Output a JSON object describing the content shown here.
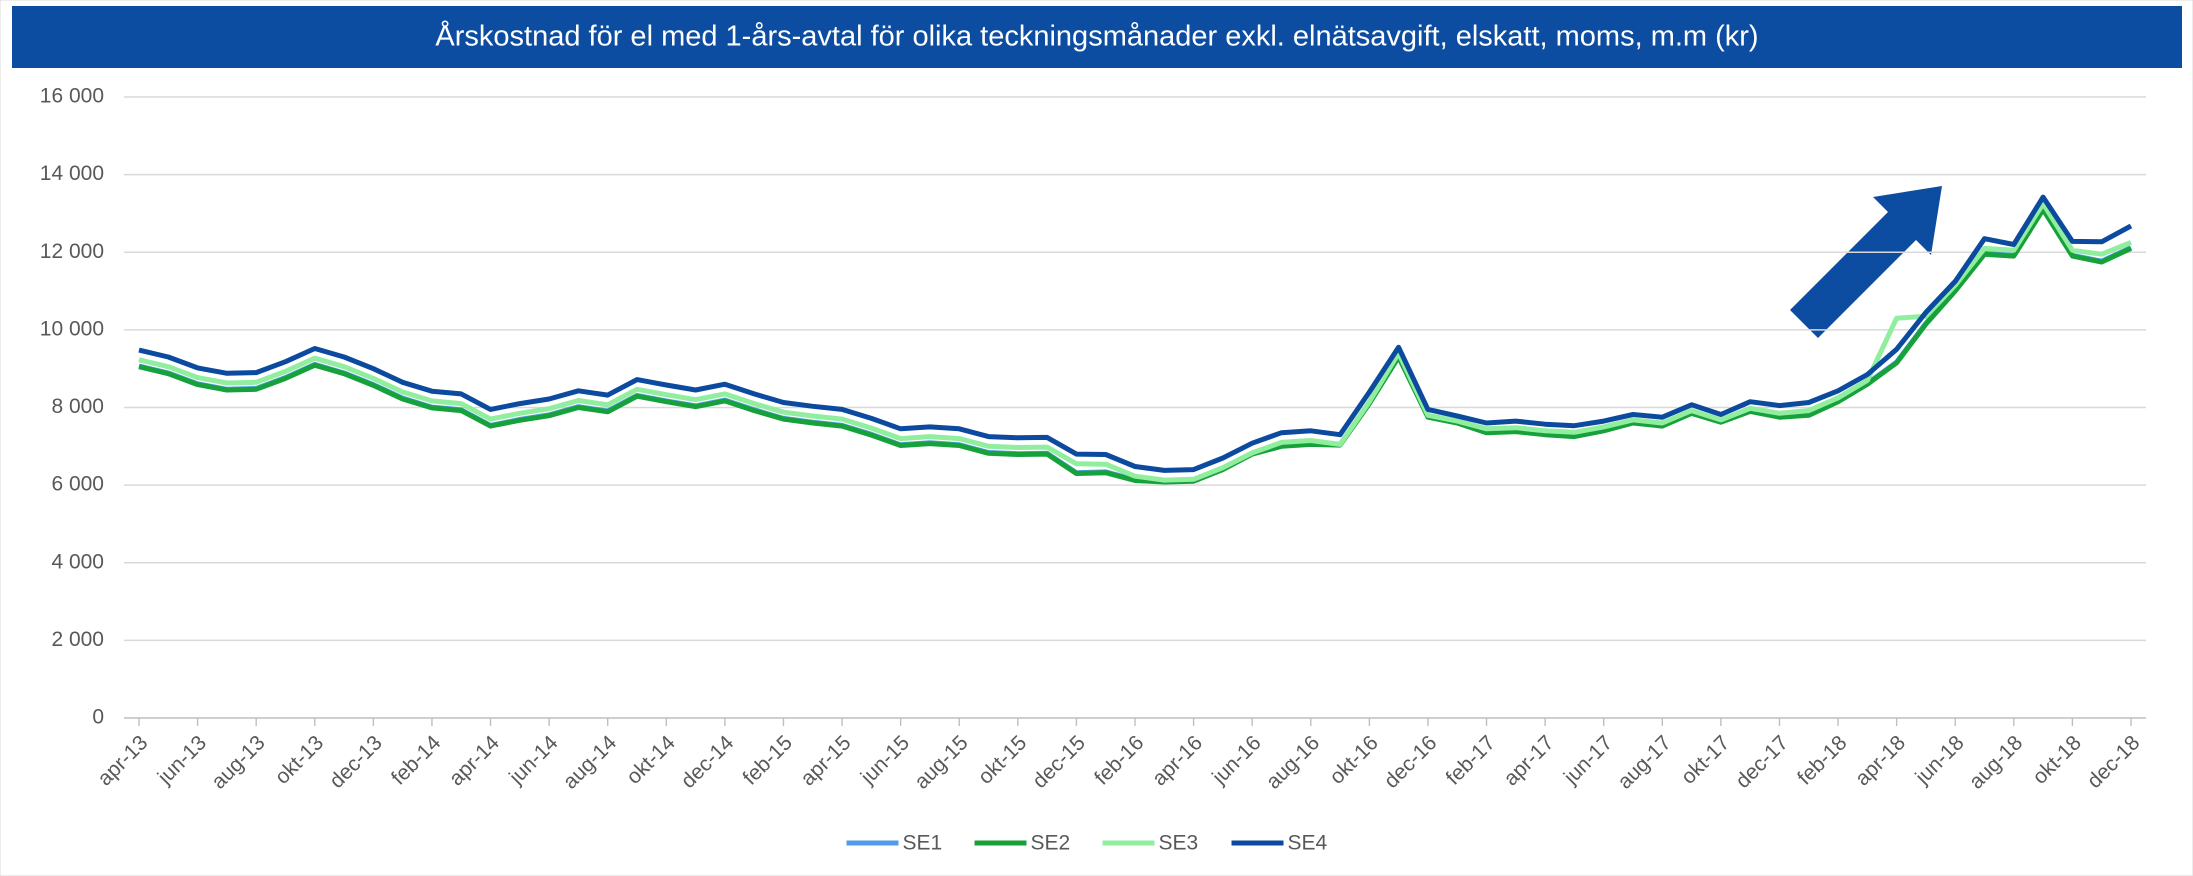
{
  "chart_data": {
    "type": "line",
    "title": "Årskostnad för el med 1-års-avtal för olika teckningsmånader exkl. elnätsavgift, elskatt, moms, m.m (kr)",
    "categories": [
      "apr-13",
      null,
      "jun-13",
      null,
      "aug-13",
      null,
      "okt-13",
      null,
      "dec-13",
      null,
      "feb-14",
      null,
      "apr-14",
      null,
      "jun-14",
      null,
      "aug-14",
      null,
      "okt-14",
      null,
      "dec-14",
      null,
      "feb-15",
      null,
      "apr-15",
      null,
      "jun-15",
      null,
      "aug-15",
      null,
      "okt-15",
      null,
      "dec-15",
      null,
      "feb-16",
      null,
      "apr-16",
      null,
      "jun-16",
      null,
      "aug-16",
      null,
      "okt-16",
      null,
      "dec-16",
      null,
      "feb-17",
      null,
      "apr-17",
      null,
      "jun-17",
      null,
      "aug-17",
      null,
      "okt-17",
      null,
      "dec-17",
      null,
      "feb-18",
      null,
      "apr-18",
      null,
      "jun-18",
      null,
      "aug-18",
      null,
      "okt-18",
      null,
      "dec-18"
    ],
    "series": [
      {
        "name": "SE1",
        "color": "#4f9be8",
        "values": [
          9070,
          8890,
          8610,
          8470,
          8490,
          8770,
          9110,
          8890,
          8590,
          8240,
          8010,
          7940,
          7540,
          7690,
          7810,
          8020,
          7910,
          8310,
          8170,
          8040,
          8190,
          7940,
          7720,
          7620,
          7540,
          7310,
          7040,
          7090,
          7040,
          6840,
          6810,
          6820,
          6320,
          6340,
          6140,
          6100,
          6120,
          6420,
          6820,
          7020,
          7070,
          7050,
          8120,
          9320,
          7770,
          7620,
          7370,
          7400,
          7320,
          7270,
          7420,
          7620,
          7540,
          7870,
          7640,
          7920,
          7770,
          7820,
          8170,
          8620,
          9170,
          10170,
          11020,
          11970,
          11920,
          13120,
          11920,
          11770,
          12120
        ]
      },
      {
        "name": "SE2",
        "color": "#16a13a",
        "values": [
          9050,
          8870,
          8590,
          8450,
          8470,
          8750,
          9090,
          8870,
          8570,
          8220,
          7990,
          7920,
          7520,
          7670,
          7790,
          8000,
          7890,
          8290,
          8150,
          8020,
          8170,
          7920,
          7700,
          7600,
          7520,
          7290,
          7020,
          7070,
          7020,
          6820,
          6790,
          6800,
          6300,
          6320,
          6120,
          6080,
          6100,
          6400,
          6800,
          7000,
          7050,
          7030,
          8100,
          9300,
          7750,
          7600,
          7350,
          7380,
          7300,
          7250,
          7400,
          7600,
          7520,
          7850,
          7620,
          7900,
          7750,
          7800,
          8150,
          8600,
          9150,
          10150,
          11000,
          11950,
          11900,
          13100,
          11900,
          11750,
          12100
        ]
      },
      {
        "name": "SE3",
        "color": "#90ee9e",
        "values": [
          9230,
          9050,
          8770,
          8630,
          8650,
          8930,
          9270,
          9050,
          8750,
          8400,
          8170,
          8100,
          7700,
          7850,
          7970,
          8180,
          8070,
          8470,
          8330,
          8200,
          8350,
          8100,
          7880,
          7780,
          7700,
          7470,
          7200,
          7250,
          7200,
          7000,
          6970,
          6980,
          6550,
          6540,
          6230,
          6130,
          6150,
          6450,
          6830,
          7100,
          7150,
          7050,
          8150,
          9400,
          7800,
          7650,
          7450,
          7480,
          7400,
          7360,
          7500,
          7680,
          7600,
          7920,
          7680,
          7980,
          7850,
          7920,
          8250,
          8700,
          10300,
          10350,
          11150,
          12100,
          12050,
          13250,
          12050,
          11950,
          12250
        ]
      },
      {
        "name": "SE4",
        "color": "#0b4a9e",
        "values": [
          9480,
          9300,
          9020,
          8880,
          8900,
          9180,
          9520,
          9300,
          9000,
          8650,
          8420,
          8350,
          7950,
          8100,
          8220,
          8430,
          8320,
          8720,
          8580,
          8450,
          8600,
          8350,
          8130,
          8030,
          7950,
          7720,
          7450,
          7500,
          7450,
          7250,
          7220,
          7230,
          6800,
          6790,
          6480,
          6380,
          6400,
          6700,
          7080,
          7350,
          7400,
          7300,
          8400,
          9550,
          7950,
          7780,
          7600,
          7650,
          7570,
          7530,
          7650,
          7820,
          7750,
          8070,
          7820,
          8150,
          8050,
          8130,
          8430,
          8850,
          9500,
          10450,
          11250,
          12350,
          12200,
          13420,
          12280,
          12270,
          12680
        ]
      }
    ],
    "ylim": [
      0,
      16000
    ],
    "yticks": [
      0,
      {
        "value": 2000,
        "label": "2 000"
      },
      {
        "value": 4000,
        "label": "4 000"
      },
      {
        "value": 6000,
        "label": "6 000"
      },
      {
        "value": 8000,
        "label": "8 000"
      },
      {
        "value": 10000,
        "label": "10 000"
      },
      {
        "value": 12000,
        "label": "12 000"
      },
      {
        "value": 14000,
        "label": "14 000"
      },
      {
        "value": 16000,
        "label": "16 000"
      }
    ],
    "grid": true,
    "legend": "bottom"
  }
}
